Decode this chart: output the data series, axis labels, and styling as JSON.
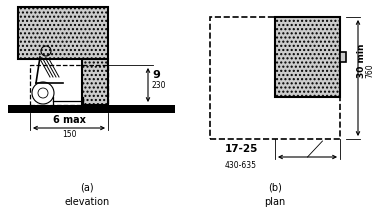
{
  "bg_color": "#ffffff",
  "line_color": "#000000",
  "title_a": "(a)\nelevation",
  "title_b": "(b)\nplan",
  "dim_9": "9",
  "dim_230": "230",
  "dim_6max": "6 max",
  "dim_150": "150",
  "dim_1725": "17-25",
  "dim_430635": "430-635",
  "dim_30min": "30 min",
  "dim_760": "760",
  "fig_width": 3.86,
  "fig_height": 2.17,
  "dpi": 100
}
